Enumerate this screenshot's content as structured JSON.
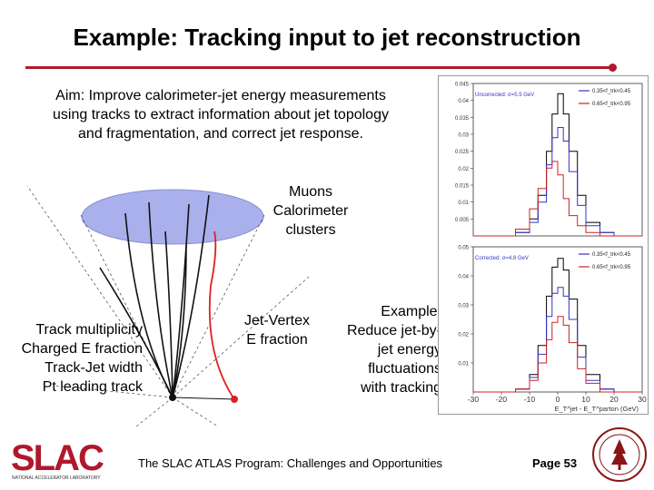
{
  "slide": {
    "title": "Example: Tracking input to jet reconstruction",
    "aim_lines": [
      "Aim: Improve calorimeter-jet energy measurements",
      "using tracks to extract information about jet topology",
      "and fragmentation, and correct jet response."
    ],
    "muons_lines": [
      "Muons",
      "Calorimeter",
      "clusters"
    ],
    "track_lines": [
      "Track multiplicity",
      "Charged E fraction",
      "Track-Jet width",
      "Pt leading track"
    ],
    "jv_lines": [
      "Jet-Vertex",
      "E fraction"
    ],
    "example_lines": [
      "Example:",
      "Reduce jet-by-",
      "jet energy",
      "fluctuations",
      "with tracking"
    ],
    "footer": "The SLAC ATLAS Program: Challenges and Opportunities",
    "page": "Page 53",
    "accent_color": "#b0182c"
  },
  "logo": {
    "text": "SLAC",
    "subtext": "NATIONAL ACCELERATOR LABORATORY"
  },
  "chart_data": [
    {
      "type": "line",
      "annotation": "Uncorrected: σ=5.5 GeV",
      "legend": [
        "0.35<f_trk<0.45",
        "0.65<f_trk<0.95"
      ],
      "legend_placement": "top-right",
      "yticks": [
        "0.045",
        "0.04",
        "0.035",
        "0.03",
        "0.025",
        "0.02",
        "0.015",
        "0.01",
        "0.005"
      ],
      "ylim": [
        0,
        0.045
      ],
      "xlim": [
        -30,
        30
      ],
      "series": [
        {
          "name": "",
          "color": "#000000",
          "x": [
            -30,
            -20,
            -15,
            -10,
            -7,
            -4,
            -2,
            0,
            2,
            4,
            7,
            10,
            15,
            20,
            30
          ],
          "y": [
            0,
            0,
            0.001,
            0.005,
            0.012,
            0.025,
            0.036,
            0.042,
            0.036,
            0.025,
            0.012,
            0.004,
            0.001,
            0,
            0
          ]
        },
        {
          "name": "0.35<f_trk<0.45",
          "color": "#3333cc",
          "x": [
            -30,
            -20,
            -15,
            -10,
            -7,
            -4,
            -2,
            0,
            2,
            4,
            7,
            10,
            15,
            20,
            30
          ],
          "y": [
            0,
            0,
            0.001,
            0.004,
            0.01,
            0.021,
            0.029,
            0.032,
            0.028,
            0.019,
            0.009,
            0.003,
            0.001,
            0,
            0
          ]
        },
        {
          "name": "0.65<f_trk<0.95",
          "color": "#cc2222",
          "x": [
            -30,
            -20,
            -15,
            -10,
            -7,
            -4,
            -2,
            0,
            2,
            4,
            7,
            10,
            15,
            20,
            30
          ],
          "y": [
            0,
            0,
            0.002,
            0.008,
            0.014,
            0.02,
            0.022,
            0.018,
            0.011,
            0.006,
            0.003,
            0.001,
            0,
            0,
            0
          ]
        }
      ]
    },
    {
      "type": "line",
      "annotation": "Corrected: σ=4.8 GeV",
      "legend": [
        "0.35<f_trk<0.45",
        "0.65<f_trk<0.95"
      ],
      "legend_placement": "top-right",
      "yticks": [
        "0.05",
        "0.04",
        "0.03",
        "0.02",
        "0.01"
      ],
      "xticks": [
        "-30",
        "-20",
        "-10",
        "0",
        "10",
        "20",
        "30"
      ],
      "xlabel": "E_T^jet - E_T^parton (GeV)",
      "ylim": [
        0,
        0.05
      ],
      "xlim": [
        -30,
        30
      ],
      "series": [
        {
          "name": "",
          "color": "#000000",
          "x": [
            -30,
            -20,
            -15,
            -10,
            -7,
            -4,
            -2,
            0,
            2,
            4,
            7,
            10,
            15,
            20,
            30
          ],
          "y": [
            0,
            0,
            0.001,
            0.006,
            0.016,
            0.033,
            0.043,
            0.046,
            0.042,
            0.032,
            0.016,
            0.006,
            0.001,
            0,
            0
          ]
        },
        {
          "name": "0.35<f_trk<0.45",
          "color": "#3333cc",
          "x": [
            -30,
            -20,
            -15,
            -10,
            -7,
            -4,
            -2,
            0,
            2,
            4,
            7,
            10,
            15,
            20,
            30
          ],
          "y": [
            0,
            0,
            0.001,
            0.005,
            0.013,
            0.026,
            0.034,
            0.036,
            0.033,
            0.025,
            0.012,
            0.004,
            0.001,
            0,
            0
          ]
        },
        {
          "name": "0.65<f_trk<0.95",
          "color": "#cc2222",
          "x": [
            -30,
            -20,
            -15,
            -10,
            -7,
            -4,
            -2,
            0,
            2,
            4,
            7,
            10,
            15,
            20,
            30
          ],
          "y": [
            0,
            0,
            0.001,
            0.004,
            0.01,
            0.018,
            0.024,
            0.026,
            0.023,
            0.017,
            0.008,
            0.003,
            0,
            0,
            0
          ]
        }
      ]
    }
  ]
}
